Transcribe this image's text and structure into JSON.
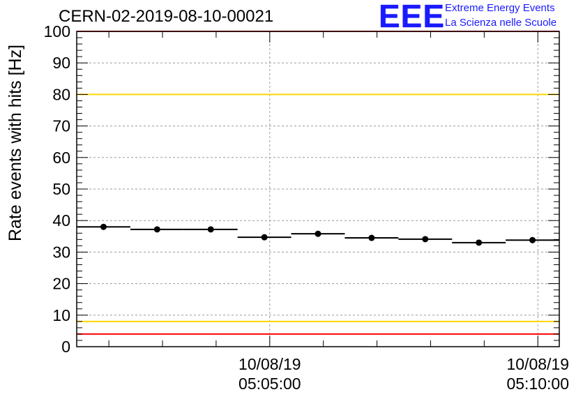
{
  "header": {
    "title": "CERN-02-2019-08-10-00021"
  },
  "logo": {
    "mark": "EEE",
    "line1": "Extreme Energy Events",
    "line2": "La Scienza nelle Scuole",
    "color": "#1a1aff"
  },
  "chart_data": {
    "type": "scatter",
    "ylabel": "Rate events with hits [Hz]",
    "xlabel": "",
    "ylim": [
      0,
      100
    ],
    "y_ticks": [
      0,
      10,
      20,
      30,
      40,
      50,
      60,
      70,
      80,
      90,
      100
    ],
    "xlim": [
      "2019-08-10 05:01:24",
      "2019-08-10 05:10:24"
    ],
    "x_ticks": [
      {
        "date": "10/08/19",
        "time": "05:05:00"
      },
      {
        "date": "10/08/19",
        "time": "05:10:00"
      }
    ],
    "grid": true,
    "series": [
      {
        "points": [
          {
            "x_start": "2019-08-10 05:01:24",
            "x_end": "2019-08-10 05:02:24",
            "x": "2019-08-10 05:01:54",
            "y": 38.0
          },
          {
            "x_start": "2019-08-10 05:02:24",
            "x_end": "2019-08-10 05:03:24",
            "x": "2019-08-10 05:02:54",
            "y": 37.2
          },
          {
            "x_start": "2019-08-10 05:03:24",
            "x_end": "2019-08-10 05:04:24",
            "x": "2019-08-10 05:03:54",
            "y": 37.2
          },
          {
            "x_start": "2019-08-10 05:04:24",
            "x_end": "2019-08-10 05:05:24",
            "x": "2019-08-10 05:04:54",
            "y": 34.7
          },
          {
            "x_start": "2019-08-10 05:05:24",
            "x_end": "2019-08-10 05:06:24",
            "x": "2019-08-10 05:05:54",
            "y": 35.8
          },
          {
            "x_start": "2019-08-10 05:06:24",
            "x_end": "2019-08-10 05:07:24",
            "x": "2019-08-10 05:06:54",
            "y": 34.5
          },
          {
            "x_start": "2019-08-10 05:07:24",
            "x_end": "2019-08-10 05:08:24",
            "x": "2019-08-10 05:07:54",
            "y": 34.1
          },
          {
            "x_start": "2019-08-10 05:08:24",
            "x_end": "2019-08-10 05:09:24",
            "x": "2019-08-10 05:08:54",
            "y": 33.0
          },
          {
            "x_start": "2019-08-10 05:09:24",
            "x_end": "2019-08-10 05:10:24",
            "x": "2019-08-10 05:09:54",
            "y": 33.8
          }
        ],
        "color": "#000000"
      }
    ],
    "reference_lines": [
      {
        "y": 100,
        "color": "#ff0000"
      },
      {
        "y": 80,
        "color": "#ffd700"
      },
      {
        "y": 8,
        "color": "#ffd700"
      },
      {
        "y": 4,
        "color": "#ff0000"
      }
    ]
  }
}
